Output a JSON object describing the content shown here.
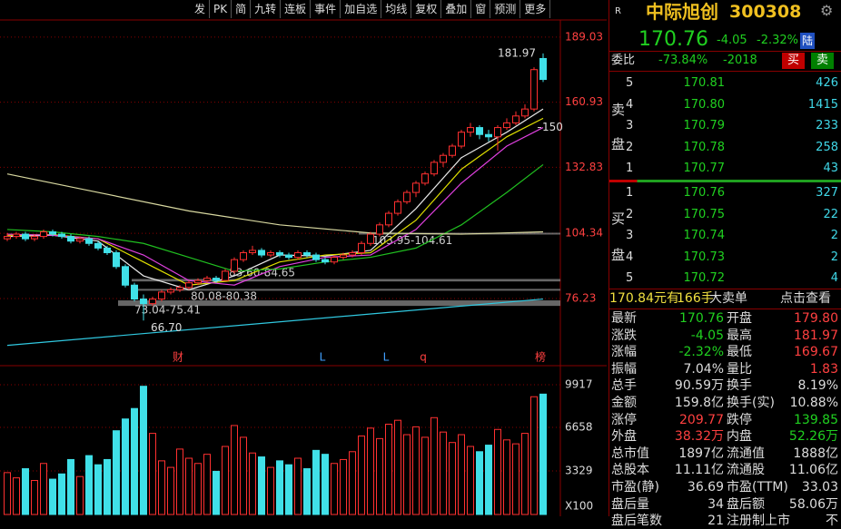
{
  "toolbar": [
    "发",
    "PK",
    "简",
    "九转",
    "连板",
    "事件",
    "加自选",
    "均线",
    "复权",
    "叠加",
    "窗",
    "预测",
    "更多"
  ],
  "chart_data": [
    {
      "type": "candlestick",
      "candles": [
        [
          102,
          104.5,
          101,
          103
        ],
        [
          103,
          105,
          102,
          104
        ],
        [
          104,
          105,
          101,
          102
        ],
        [
          102,
          104,
          101,
          103
        ],
        [
          103,
          106,
          102,
          105
        ],
        [
          105,
          106,
          103,
          104
        ],
        [
          104,
          105,
          102,
          103
        ],
        [
          103,
          104,
          100,
          101
        ],
        [
          101,
          103,
          100,
          102
        ],
        [
          102,
          103,
          99,
          100
        ],
        [
          100,
          101,
          97,
          98
        ],
        [
          98,
          99,
          95,
          96
        ],
        [
          96,
          97,
          89,
          90
        ],
        [
          90,
          91,
          81,
          82
        ],
        [
          82,
          83,
          75,
          76
        ],
        [
          76,
          78,
          66.7,
          74
        ],
        [
          74,
          77,
          73,
          76
        ],
        [
          76,
          80,
          75,
          79
        ],
        [
          79,
          81,
          78,
          80
        ],
        [
          80,
          82,
          79,
          81
        ],
        [
          81,
          84,
          80,
          83
        ],
        [
          83,
          85,
          82,
          84
        ],
        [
          84,
          86,
          83,
          85
        ],
        [
          85,
          86,
          83,
          84
        ],
        [
          84,
          89,
          84,
          88
        ],
        [
          88,
          94,
          87,
          93
        ],
        [
          93,
          97,
          92,
          96
        ],
        [
          96,
          99,
          95,
          97
        ],
        [
          97,
          98,
          94,
          95
        ],
        [
          95,
          97,
          94,
          96
        ],
        [
          96,
          97,
          94,
          95
        ],
        [
          95,
          96,
          93,
          94
        ],
        [
          94,
          97,
          93,
          96
        ],
        [
          96,
          97,
          94,
          95
        ],
        [
          95,
          96,
          92,
          93
        ],
        [
          93,
          94,
          91,
          92
        ],
        [
          92,
          95,
          91,
          94
        ],
        [
          94,
          96,
          93,
          95
        ],
        [
          95,
          97,
          94,
          96
        ],
        [
          96,
          101,
          95,
          100
        ],
        [
          100,
          105,
          99,
          104
        ],
        [
          104,
          109,
          103,
          108
        ],
        [
          108,
          114,
          107,
          113
        ],
        [
          113,
          119,
          112,
          118
        ],
        [
          118,
          123,
          117,
          122
        ],
        [
          122,
          127,
          120,
          126
        ],
        [
          126,
          131,
          125,
          130
        ],
        [
          130,
          136,
          129,
          135
        ],
        [
          135,
          139,
          133,
          138
        ],
        [
          138,
          143,
          137,
          142
        ],
        [
          142,
          149,
          141,
          148
        ],
        [
          148,
          152,
          146,
          150
        ],
        [
          150,
          151,
          145,
          147
        ],
        [
          147,
          149,
          144,
          146
        ],
        [
          146,
          151,
          140,
          150
        ],
        [
          150,
          154,
          149,
          152
        ],
        [
          152,
          157,
          151,
          155
        ],
        [
          155,
          160,
          154,
          158
        ],
        [
          158,
          176,
          157,
          175
        ],
        [
          179.8,
          181.97,
          169.67,
          170.76
        ]
      ],
      "lines": [
        {
          "color": "#e8e8e8",
          "x": [
            0,
            5,
            10,
            15,
            20,
            25,
            30,
            35,
            40,
            45,
            50,
            55,
            59
          ],
          "values": [
            103,
            103.5,
            101,
            86,
            80,
            86,
            95,
            94.5,
            97,
            115,
            137,
            148,
            158
          ]
        },
        {
          "color": "#e0e000",
          "x": [
            0,
            5,
            10,
            15,
            20,
            25,
            30,
            35,
            40,
            45,
            50,
            55,
            59
          ],
          "values": [
            103.5,
            103.8,
            102,
            92,
            82,
            84,
            92,
            95,
            96,
            110,
            132,
            146,
            154
          ]
        },
        {
          "color": "#e040e0",
          "x": [
            0,
            5,
            10,
            15,
            20,
            25,
            30,
            35,
            40,
            45,
            50,
            55,
            59
          ],
          "values": [
            104,
            103.5,
            102,
            95,
            84,
            82,
            90,
            94,
            95,
            106,
            126,
            142,
            150
          ]
        },
        {
          "color": "#20c020",
          "x": [
            0,
            5,
            10,
            15,
            20,
            25,
            30,
            35,
            40,
            45,
            50,
            55,
            59
          ],
          "values": [
            106,
            105,
            103,
            100,
            94,
            88,
            89,
            92,
            94,
            98,
            108,
            122,
            134
          ]
        },
        {
          "color": "#d8d8a0",
          "x": [
            0,
            10,
            20,
            30,
            40,
            50,
            59
          ],
          "values": [
            130,
            122,
            114,
            108,
            104.5,
            104,
            105
          ]
        },
        {
          "color": "#30c8e0",
          "x": [
            0,
            59
          ],
          "values": [
            56,
            76
          ]
        }
      ],
      "ylim": [
        49.2,
        193.3
      ],
      "yticks": [
        189.03,
        160.93,
        132.83,
        104.34,
        76.23
      ],
      "bands": [
        {
          "label": "103.95-104.61",
          "low": 103.95,
          "high": 104.61
        },
        {
          "label": "83.60-84.65",
          "low": 83.6,
          "high": 84.65
        },
        {
          "label": "80.08-80.38",
          "low": 80.08,
          "high": 80.38
        },
        {
          "label": "73.04-75.41",
          "low": 73.04,
          "high": 75.41
        }
      ],
      "high_label": 181.97,
      "level": 150,
      "low_label": "66.70",
      "events": [
        "财",
        "L",
        "L",
        "q",
        "榜"
      ]
    },
    {
      "type": "bar",
      "values": [
        3200,
        2800,
        3500,
        2600,
        3900,
        2700,
        3100,
        4200,
        2900,
        4500,
        3800,
        4200,
        6400,
        7300,
        8100,
        9800,
        6200,
        4100,
        3600,
        5000,
        4300,
        3900,
        4600,
        3300,
        5200,
        6800,
        5900,
        4700,
        4400,
        3600,
        4100,
        3800,
        4300,
        3500,
        4900,
        4600,
        3900,
        4200,
        4800,
        6000,
        6600,
        5800,
        6900,
        7200,
        6100,
        6700,
        5900,
        7400,
        6300,
        5500,
        6100,
        5200,
        4800,
        5300,
        6500,
        5700,
        5400,
        6200,
        9000,
        9200
      ],
      "ylim": [
        0,
        11235
      ],
      "yticks": [
        9917,
        6658,
        3329
      ],
      "unit": "X100"
    }
  ],
  "quote": {
    "badge": "R",
    "name": "中际旭创",
    "code": "300308",
    "price": "170.76",
    "change": "-4.05",
    "pct": "-2.32%",
    "tag": "陆",
    "ratio_label": "委比",
    "ratio": "-73.84%",
    "diff": "-2018",
    "buy": "买",
    "sell": "卖",
    "sell_side": [
      "卖",
      "盘"
    ],
    "buy_side": [
      "买",
      "盘"
    ],
    "sell_levels": [
      [
        "5",
        "170.81",
        "426"
      ],
      [
        "4",
        "170.80",
        "1415"
      ],
      [
        "3",
        "170.79",
        "233"
      ],
      [
        "2",
        "170.78",
        "258"
      ],
      [
        "1",
        "170.77",
        "43"
      ]
    ],
    "buy_levels": [
      [
        "1",
        "170.76",
        "327"
      ],
      [
        "2",
        "170.75",
        "22"
      ],
      [
        "3",
        "170.74",
        "2"
      ],
      [
        "4",
        "170.73",
        "2"
      ],
      [
        "5",
        "170.72",
        "4"
      ]
    ],
    "summary": [
      "170.84元有",
      "166手",
      "大卖单",
      "点击查看"
    ],
    "stats": [
      [
        {
          "label": "最新",
          "value": "170.76",
          "color": "#20d020"
        },
        {
          "label": "开盘",
          "value": "179.80",
          "color": "#ff4040"
        }
      ],
      [
        {
          "label": "涨跌",
          "value": "-4.05",
          "color": "#20d020"
        },
        {
          "label": "最高",
          "value": "181.97",
          "color": "#ff4040"
        }
      ],
      [
        {
          "label": "涨幅",
          "value": "-2.32%",
          "color": "#20d020"
        },
        {
          "label": "最低",
          "value": "169.67",
          "color": "#ff4040"
        }
      ],
      [
        {
          "label": "振幅",
          "value": "7.04%"
        },
        {
          "label": "量比",
          "value": "1.83",
          "color": "#ff4040"
        }
      ],
      [
        {
          "label": "总手",
          "value": "90.59万"
        },
        {
          "label": "换手",
          "value": "8.19%"
        }
      ],
      [
        {
          "label": "金额",
          "value": "159.8亿"
        },
        {
          "label": "换手(实)",
          "value": "10.88%"
        }
      ],
      [
        {
          "label": "涨停",
          "value": "209.77",
          "color": "#ff4040"
        },
        {
          "label": "跌停",
          "value": "139.85",
          "color": "#20d020"
        }
      ],
      [
        {
          "label": "外盘",
          "value": "38.32万",
          "color": "#ff4040"
        },
        {
          "label": "内盘",
          "value": "52.26万",
          "color": "#20d020"
        }
      ],
      [
        {
          "label": "总市值",
          "value": "1897亿"
        },
        {
          "label": "流通值",
          "value": "1888亿"
        }
      ],
      [
        {
          "label": "总股本",
          "value": "11.11亿"
        },
        {
          "label": "流通股",
          "value": "11.06亿"
        }
      ],
      [
        {
          "label": "市盈(静)",
          "value": "36.69"
        },
        {
          "label": "市盈(TTM)",
          "value": "33.03"
        }
      ],
      [
        {
          "label": "盘后量",
          "value": "34"
        },
        {
          "label": "盘后额",
          "value": "58.06万"
        }
      ],
      [
        {
          "label": "盘后笔数",
          "value": "21"
        },
        {
          "label": "注册制上市",
          "value": "不"
        }
      ]
    ]
  }
}
